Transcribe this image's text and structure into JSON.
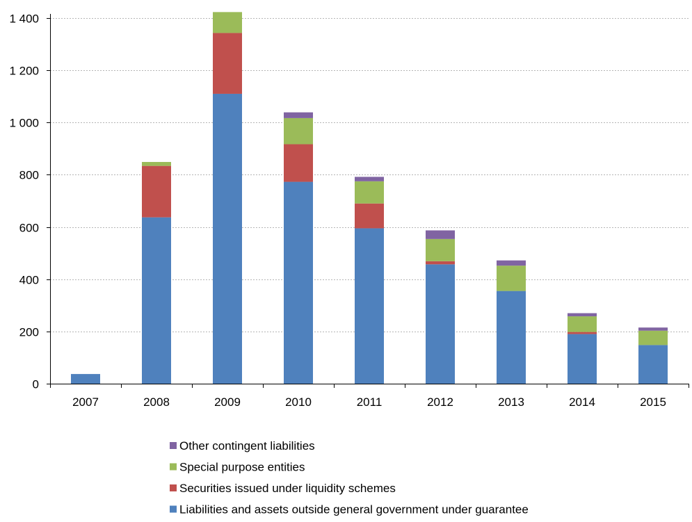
{
  "chart_data": {
    "type": "bar",
    "stacked": true,
    "categories": [
      "2007",
      "2008",
      "2009",
      "2010",
      "2011",
      "2012",
      "2013",
      "2014",
      "2015"
    ],
    "ylim": [
      0,
      1400
    ],
    "yticks": [
      0,
      200,
      400,
      600,
      800,
      1000,
      1200,
      1400
    ],
    "ytick_labels": [
      "0",
      "200",
      "400",
      "600",
      "800",
      "1 000",
      "1 200",
      "1 400"
    ],
    "grid": true,
    "legend_position": "bottom",
    "series": [
      {
        "name": "Liabilities and assets outside general government under guarantee",
        "color": "#4f81bd",
        "values": [
          37,
          637,
          1110,
          773,
          595,
          457,
          355,
          190,
          148
        ]
      },
      {
        "name": "Securities issued under liquidity schemes",
        "color": "#c0504d",
        "values": [
          0,
          197,
          233,
          144,
          95,
          12,
          0,
          8,
          0
        ]
      },
      {
        "name": "Special purpose entities",
        "color": "#9bbb59",
        "values": [
          0,
          15,
          80,
          100,
          85,
          85,
          97,
          60,
          55
        ]
      },
      {
        "name": "Other contingent liabilities",
        "color": "#8064a2",
        "values": [
          0,
          0,
          0,
          22,
          17,
          33,
          20,
          12,
          12
        ]
      }
    ],
    "legend_order": [
      3,
      2,
      1,
      0
    ]
  }
}
